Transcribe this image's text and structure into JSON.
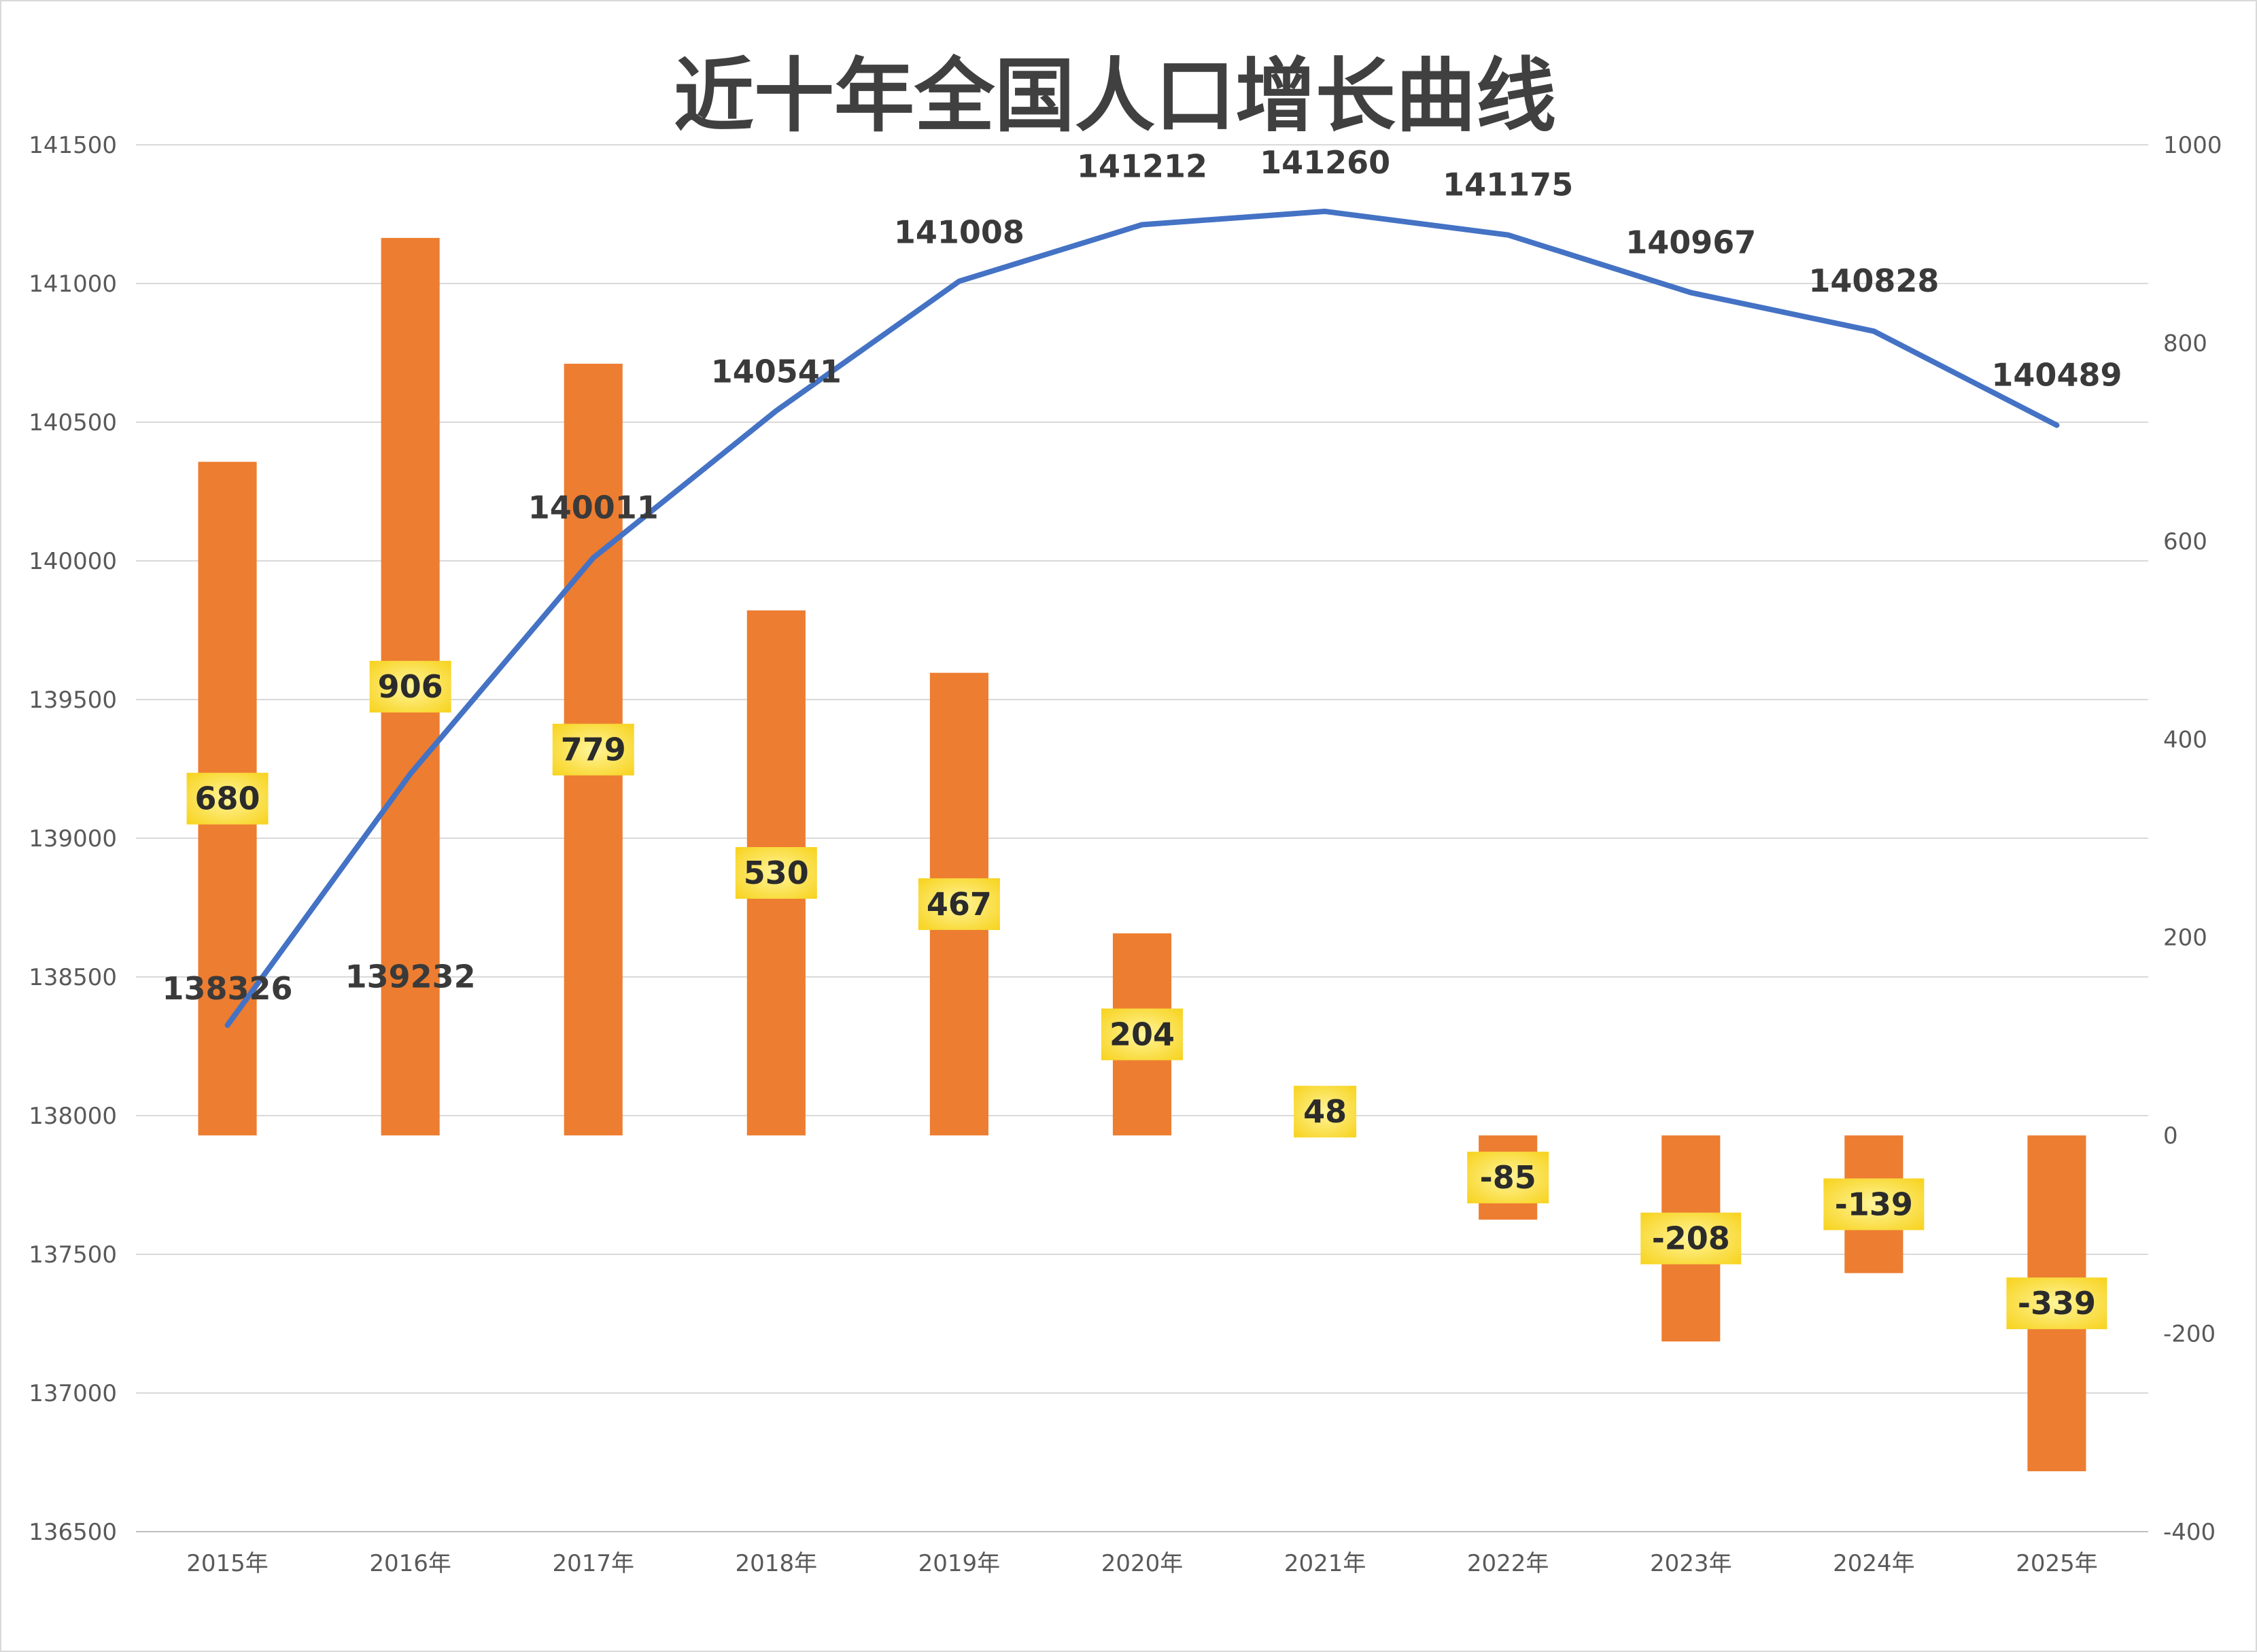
{
  "chart_data": {
    "type": "bar+line",
    "title": "近十年全国人口增长曲线",
    "categories": [
      "2015年",
      "2016年",
      "2017年",
      "2018年",
      "2019年",
      "2020年",
      "2021年",
      "2022年",
      "2023年",
      "2024年",
      "2025年"
    ],
    "series": [
      {
        "type": "line",
        "axis": "left",
        "values": [
          138326,
          139232,
          140011,
          140541,
          141008,
          141212,
          141260,
          141175,
          140967,
          140828,
          140489
        ],
        "color": "#4472c4"
      },
      {
        "type": "bar",
        "axis": "right",
        "values": [
          680,
          906,
          779,
          530,
          467,
          204,
          48,
          -85,
          -208,
          -139,
          -339
        ],
        "color": "#ed7d31"
      }
    ],
    "y_left": {
      "min": 136500,
      "max": 141500,
      "step": 500
    },
    "y_right": {
      "min": -400,
      "max": 1000,
      "step": 200
    },
    "grid": true,
    "label_box_color": "#fde35a"
  }
}
